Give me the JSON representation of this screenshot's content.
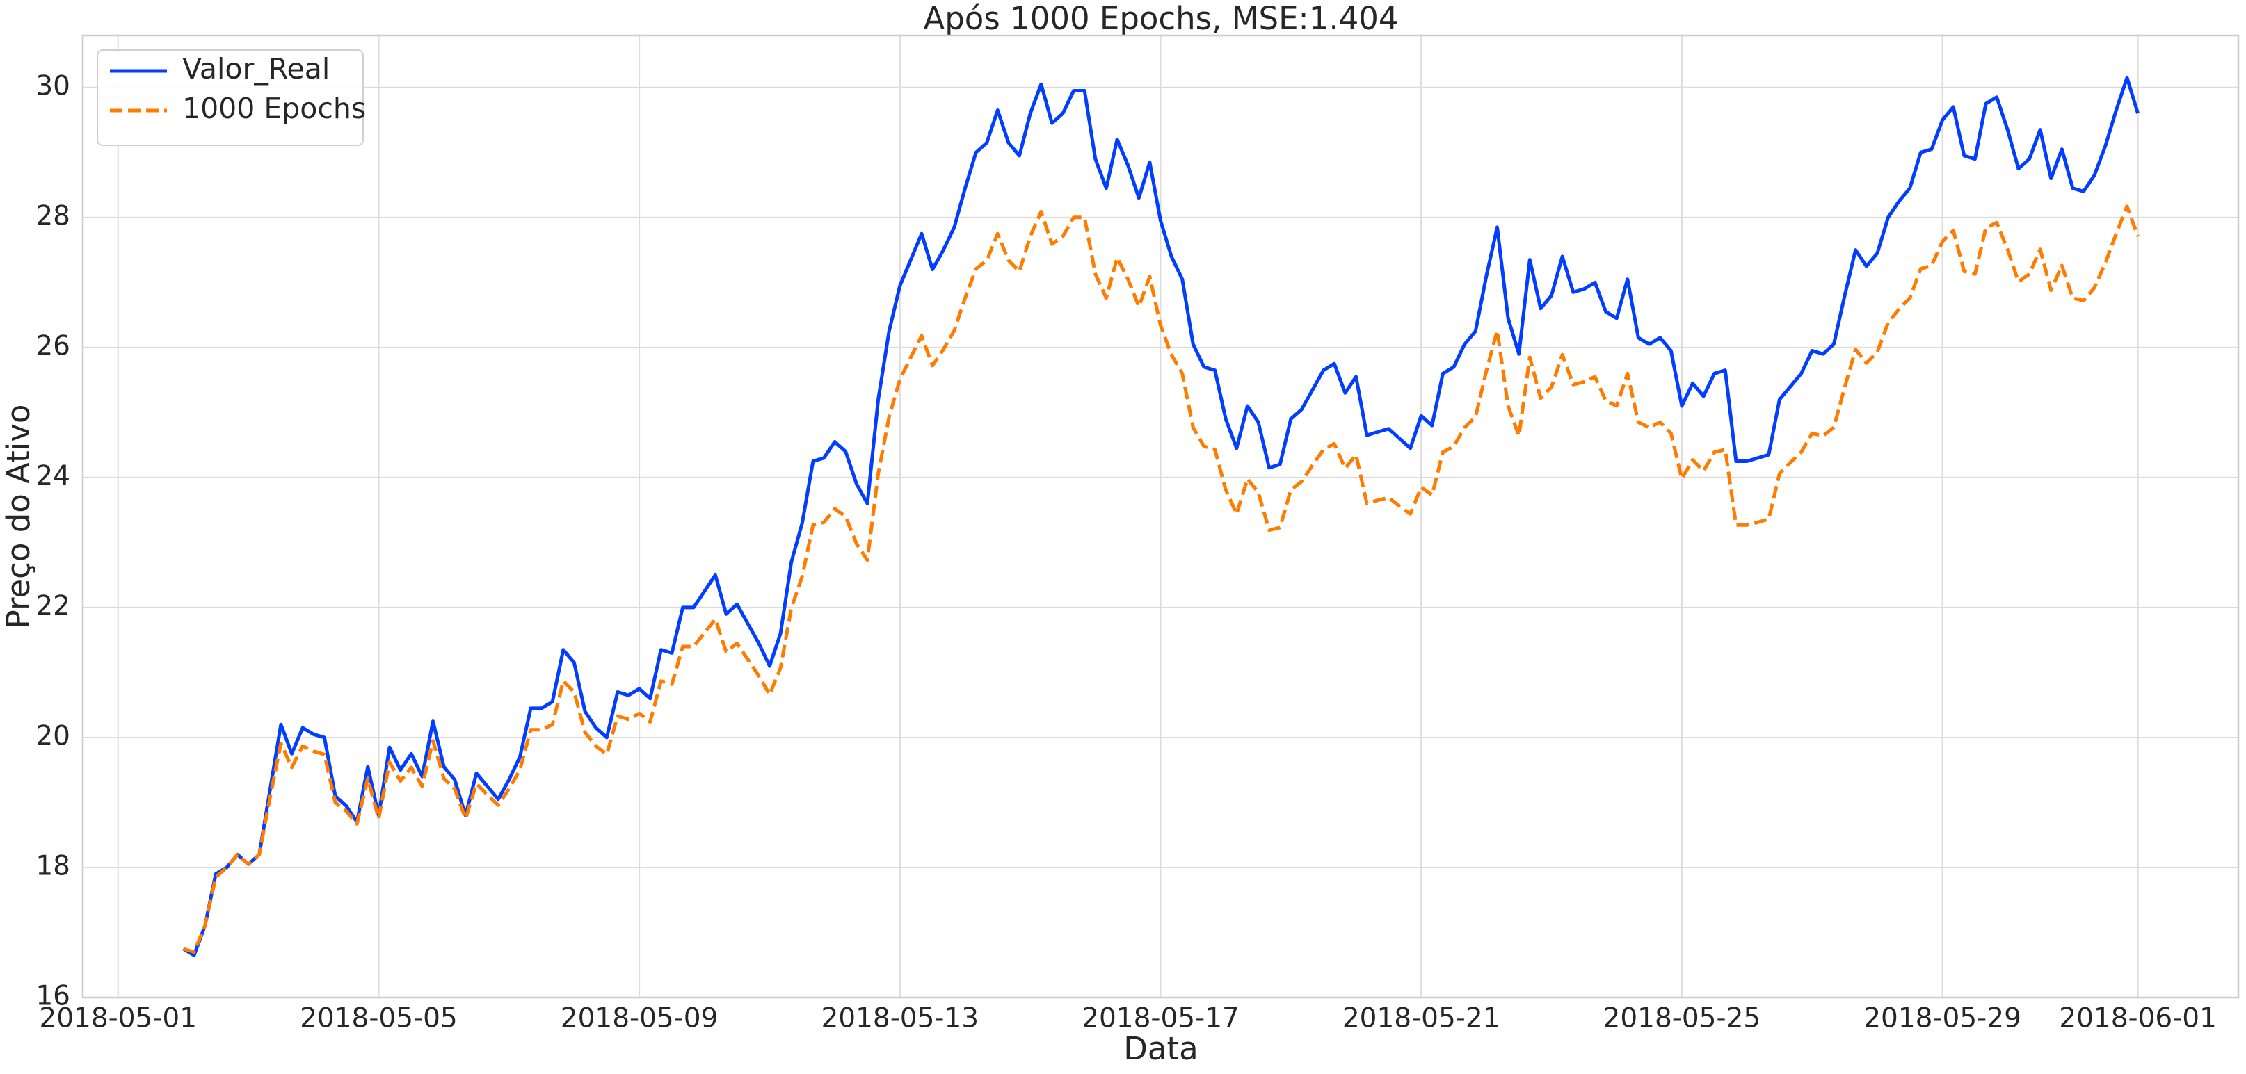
{
  "chart_data": {
    "type": "line",
    "title": "Após 1000 Epochs,  MSE:1.404",
    "x_label": "Data",
    "y_label": "Preço do Ativo",
    "grid": true,
    "legend": "upper left",
    "x": [
      "2018-05-02 00:00",
      "2018-05-02 04:00",
      "2018-05-02 08:00",
      "2018-05-02 12:00",
      "2018-05-02 16:00",
      "2018-05-02 20:00",
      "2018-05-03 00:00",
      "2018-05-03 04:00",
      "2018-05-03 08:00",
      "2018-05-03 12:00",
      "2018-05-03 16:00",
      "2018-05-03 20:00",
      "2018-05-04 00:00",
      "2018-05-04 04:00",
      "2018-05-04 08:00",
      "2018-05-04 12:00",
      "2018-05-04 16:00",
      "2018-05-04 20:00",
      "2018-05-05 00:00",
      "2018-05-05 04:00",
      "2018-05-05 08:00",
      "2018-05-05 12:00",
      "2018-05-05 16:00",
      "2018-05-05 20:00",
      "2018-05-06 00:00",
      "2018-05-06 04:00",
      "2018-05-06 08:00",
      "2018-05-06 12:00",
      "2018-05-06 16:00",
      "2018-05-06 20:00",
      "2018-05-07 00:00",
      "2018-05-07 04:00",
      "2018-05-07 08:00",
      "2018-05-07 12:00",
      "2018-05-07 16:00",
      "2018-05-07 20:00",
      "2018-05-08 00:00",
      "2018-05-08 04:00",
      "2018-05-08 08:00",
      "2018-05-08 12:00",
      "2018-05-08 16:00",
      "2018-05-08 20:00",
      "2018-05-09 00:00",
      "2018-05-09 04:00",
      "2018-05-09 08:00",
      "2018-05-09 12:00",
      "2018-05-09 16:00",
      "2018-05-09 20:00",
      "2018-05-10 00:00",
      "2018-05-10 04:00",
      "2018-05-10 08:00",
      "2018-05-10 12:00",
      "2018-05-10 16:00",
      "2018-05-10 20:00",
      "2018-05-11 00:00",
      "2018-05-11 04:00",
      "2018-05-11 08:00",
      "2018-05-11 12:00",
      "2018-05-11 16:00",
      "2018-05-11 20:00",
      "2018-05-12 00:00",
      "2018-05-12 04:00",
      "2018-05-12 08:00",
      "2018-05-12 12:00",
      "2018-05-12 16:00",
      "2018-05-12 20:00",
      "2018-05-13 00:00",
      "2018-05-13 04:00",
      "2018-05-13 08:00",
      "2018-05-13 12:00",
      "2018-05-13 16:00",
      "2018-05-13 20:00",
      "2018-05-14 00:00",
      "2018-05-14 04:00",
      "2018-05-14 08:00",
      "2018-05-14 12:00",
      "2018-05-14 16:00",
      "2018-05-14 20:00",
      "2018-05-15 00:00",
      "2018-05-15 04:00",
      "2018-05-15 08:00",
      "2018-05-15 12:00",
      "2018-05-15 16:00",
      "2018-05-15 20:00",
      "2018-05-16 00:00",
      "2018-05-16 04:00",
      "2018-05-16 08:00",
      "2018-05-16 12:00",
      "2018-05-16 16:00",
      "2018-05-16 20:00",
      "2018-05-17 00:00",
      "2018-05-17 04:00",
      "2018-05-17 08:00",
      "2018-05-17 12:00",
      "2018-05-17 16:00",
      "2018-05-17 20:00",
      "2018-05-18 00:00",
      "2018-05-18 04:00",
      "2018-05-18 08:00",
      "2018-05-18 12:00",
      "2018-05-18 16:00",
      "2018-05-18 20:00",
      "2018-05-19 00:00",
      "2018-05-19 04:00",
      "2018-05-19 08:00",
      "2018-05-19 12:00",
      "2018-05-19 16:00",
      "2018-05-19 20:00",
      "2018-05-20 00:00",
      "2018-05-20 04:00",
      "2018-05-20 08:00",
      "2018-05-20 12:00",
      "2018-05-20 16:00",
      "2018-05-20 20:00",
      "2018-05-21 00:00",
      "2018-05-21 04:00",
      "2018-05-21 08:00",
      "2018-05-21 12:00",
      "2018-05-21 16:00",
      "2018-05-21 20:00",
      "2018-05-22 00:00",
      "2018-05-22 04:00",
      "2018-05-22 08:00",
      "2018-05-22 12:00",
      "2018-05-22 16:00",
      "2018-05-22 20:00",
      "2018-05-23 00:00",
      "2018-05-23 04:00",
      "2018-05-23 08:00",
      "2018-05-23 12:00",
      "2018-05-23 16:00",
      "2018-05-23 20:00",
      "2018-05-24 00:00",
      "2018-05-24 04:00",
      "2018-05-24 08:00",
      "2018-05-24 12:00",
      "2018-05-24 16:00",
      "2018-05-24 20:00",
      "2018-05-25 00:00",
      "2018-05-25 04:00",
      "2018-05-25 08:00",
      "2018-05-25 12:00",
      "2018-05-25 16:00",
      "2018-05-25 20:00",
      "2018-05-26 00:00",
      "2018-05-26 04:00",
      "2018-05-26 08:00",
      "2018-05-26 12:00",
      "2018-05-26 16:00",
      "2018-05-26 20:00",
      "2018-05-27 00:00",
      "2018-05-27 04:00",
      "2018-05-27 08:00",
      "2018-05-27 12:00",
      "2018-05-27 16:00",
      "2018-05-27 20:00",
      "2018-05-28 00:00",
      "2018-05-28 04:00",
      "2018-05-28 08:00",
      "2018-05-28 12:00",
      "2018-05-28 16:00",
      "2018-05-28 20:00",
      "2018-05-29 00:00",
      "2018-05-29 04:00",
      "2018-05-29 08:00",
      "2018-05-29 12:00",
      "2018-05-29 16:00",
      "2018-05-29 20:00",
      "2018-05-30 00:00",
      "2018-05-30 04:00",
      "2018-05-30 08:00",
      "2018-05-30 12:00",
      "2018-05-30 16:00",
      "2018-05-30 20:00",
      "2018-05-31 00:00",
      "2018-05-31 04:00",
      "2018-05-31 08:00",
      "2018-05-31 12:00",
      "2018-05-31 16:00",
      "2018-05-31 20:00",
      "2018-06-01 00:00"
    ],
    "series": [
      {
        "name": "Valor_Real",
        "color": "#023eff",
        "dashed": false,
        "values": [
          16.75,
          16.65,
          17.1,
          17.9,
          18.0,
          18.2,
          18.05,
          18.2,
          19.2,
          20.2,
          19.75,
          20.15,
          20.05,
          20.0,
          19.1,
          18.95,
          18.7,
          19.55,
          18.8,
          19.85,
          19.5,
          19.75,
          19.4,
          20.25,
          19.55,
          19.35,
          18.8,
          19.45,
          19.25,
          19.05,
          19.35,
          19.7,
          20.45,
          20.45,
          20.55,
          21.35,
          21.15,
          20.4,
          20.15,
          20.0,
          20.7,
          20.65,
          20.75,
          20.6,
          21.35,
          21.3,
          22.0,
          22.0,
          22.25,
          22.5,
          21.9,
          22.05,
          21.75,
          21.45,
          21.1,
          21.6,
          22.7,
          23.3,
          24.25,
          24.3,
          24.55,
          24.4,
          23.9,
          23.6,
          25.2,
          26.25,
          26.95,
          27.35,
          27.75,
          27.2,
          27.5,
          27.85,
          28.45,
          29.0,
          29.15,
          29.65,
          29.15,
          28.95,
          29.6,
          30.05,
          29.45,
          29.6,
          29.95,
          29.95,
          28.9,
          28.45,
          29.2,
          28.8,
          28.3,
          28.85,
          27.95,
          27.4,
          27.05,
          26.05,
          25.7,
          25.65,
          24.9,
          24.45,
          25.1,
          24.85,
          24.15,
          24.2,
          24.9,
          25.05,
          25.35,
          25.65,
          25.75,
          25.3,
          25.55,
          24.65,
          24.7,
          24.75,
          24.6,
          24.45,
          24.95,
          24.8,
          25.6,
          25.7,
          26.05,
          26.25,
          27.1,
          27.85,
          26.45,
          25.9,
          27.35,
          26.6,
          26.8,
          27.4,
          26.85,
          26.9,
          27.0,
          26.55,
          26.45,
          27.05,
          26.15,
          26.05,
          26.15,
          25.95,
          25.1,
          25.45,
          25.25,
          25.6,
          25.65,
          24.25,
          24.25,
          24.3,
          24.35,
          25.2,
          25.4,
          25.6,
          25.95,
          25.9,
          26.05,
          26.8,
          27.5,
          27.25,
          27.45,
          28.0,
          28.25,
          28.45,
          29.0,
          29.05,
          29.5,
          29.7,
          28.95,
          28.9,
          29.75,
          29.85,
          29.35,
          28.75,
          28.9,
          29.35,
          28.6,
          29.05,
          28.45,
          28.4,
          28.65,
          29.1,
          29.65,
          30.15,
          29.6
        ]
      },
      {
        "name": "1000 Epochs",
        "color": "#ff7c00",
        "dashed": true,
        "values": [
          16.75,
          16.7,
          17.1,
          17.85,
          18.0,
          18.2,
          18.05,
          18.2,
          19.08,
          19.91,
          19.54,
          19.87,
          19.79,
          19.74,
          19.0,
          18.87,
          18.67,
          19.37,
          18.75,
          19.62,
          19.33,
          19.54,
          19.25,
          19.95,
          19.37,
          19.21,
          18.75,
          19.29,
          19.12,
          18.96,
          19.21,
          19.5,
          20.12,
          20.12,
          20.2,
          20.87,
          20.7,
          20.08,
          19.87,
          19.74,
          20.33,
          20.28,
          20.37,
          20.24,
          20.87,
          20.82,
          21.4,
          21.4,
          21.61,
          21.82,
          21.32,
          21.45,
          21.2,
          20.95,
          20.66,
          21.07,
          21.99,
          22.48,
          23.27,
          23.31,
          23.52,
          23.4,
          22.98,
          22.73,
          24.06,
          24.93,
          25.51,
          25.85,
          26.18,
          25.72,
          25.97,
          26.26,
          26.76,
          27.21,
          27.34,
          27.75,
          27.34,
          27.17,
          27.71,
          28.09,
          27.59,
          27.71,
          28.0,
          28.0,
          27.13,
          26.76,
          27.38,
          27.05,
          26.63,
          27.09,
          26.34,
          25.89,
          25.6,
          24.77,
          24.48,
          24.43,
          23.81,
          23.44,
          23.98,
          23.77,
          23.19,
          23.23,
          23.81,
          23.94,
          24.19,
          24.43,
          24.52,
          24.14,
          24.35,
          23.6,
          23.65,
          23.69,
          23.56,
          23.44,
          23.85,
          23.73,
          24.39,
          24.48,
          24.77,
          24.93,
          25.64,
          26.26,
          25.1,
          24.64,
          25.85,
          25.22,
          25.39,
          25.89,
          25.43,
          25.47,
          25.55,
          25.18,
          25.1,
          25.6,
          24.85,
          24.77,
          24.85,
          24.68,
          23.98,
          24.27,
          24.1,
          24.39,
          24.43,
          23.27,
          23.27,
          23.31,
          23.36,
          24.06,
          24.23,
          24.39,
          24.68,
          24.64,
          24.77,
          25.39,
          25.97,
          25.76,
          25.93,
          26.38,
          26.59,
          26.76,
          27.21,
          27.26,
          27.63,
          27.8,
          27.17,
          27.13,
          27.84,
          27.92,
          27.51,
          27.01,
          27.13,
          27.51,
          26.88,
          27.26,
          26.76,
          26.72,
          26.92,
          27.3,
          27.75,
          28.17,
          27.71
        ]
      }
    ],
    "xlim": [
      "2018-04-30 11:00",
      "2018-06-02 13:00"
    ],
    "xticks": [
      "2018-05-01",
      "2018-05-05",
      "2018-05-09",
      "2018-05-13",
      "2018-05-17",
      "2018-05-21",
      "2018-05-25",
      "2018-05-29",
      "2018-06-01"
    ],
    "ylim": [
      16,
      30.8
    ],
    "yticks": [
      16,
      18,
      20,
      22,
      24,
      26,
      28,
      30
    ]
  }
}
